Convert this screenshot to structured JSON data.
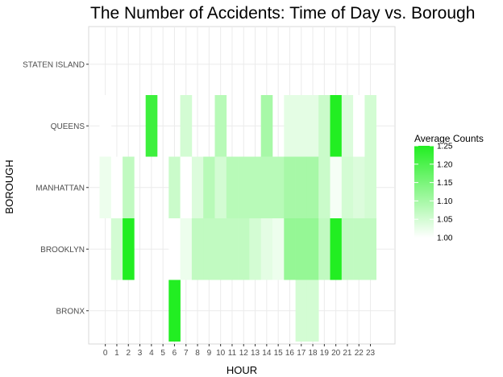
{
  "chart_data": {
    "type": "heatmap",
    "title": "The Number of Accidents: Time of Day vs. Borough",
    "xlabel": "HOUR",
    "ylabel": "BOROUGH",
    "x_categories": [
      "0",
      "1",
      "2",
      "3",
      "4",
      "5",
      "6",
      "7",
      "8",
      "9",
      "10",
      "11",
      "12",
      "13",
      "14",
      "15",
      "16",
      "17",
      "18",
      "19",
      "20",
      "21",
      "22",
      "23"
    ],
    "y_categories": [
      "BRONX",
      "BROOKLYN",
      "MANHATTAN",
      "QUEENS",
      "STATEN ISLAND"
    ],
    "legend": {
      "title": "Average Counts",
      "ticks": [
        "1.25",
        "1.20",
        "1.15",
        "1.10",
        "1.05",
        "1.00"
      ],
      "min": 1.0,
      "max": 1.25,
      "low_color": "#ffffff",
      "high_color": "#22ee22",
      "position": "right"
    },
    "grid": true,
    "cells": {
      "BRONX": {
        "6": 1.25,
        "17": 1.05,
        "18": 1.05
      },
      "BROOKLYN": {
        "1": 1.05,
        "2": 1.25,
        "6": 1.0,
        "7": 1.02,
        "8": 1.07,
        "9": 1.07,
        "10": 1.07,
        "11": 1.07,
        "12": 1.07,
        "13": 1.05,
        "14": 1.03,
        "15": 1.02,
        "16": 1.12,
        "17": 1.12,
        "18": 1.12,
        "19": 1.07,
        "20": 1.25,
        "21": 1.07,
        "22": 1.07,
        "23": 1.07
      },
      "MANHATTAN": {
        "0": 1.02,
        "1": 1.0,
        "2": 1.07,
        "6": 1.06,
        "7": 1.0,
        "8": 1.04,
        "9": 1.08,
        "10": 1.05,
        "11": 1.08,
        "12": 1.08,
        "13": 1.08,
        "14": 1.08,
        "15": 1.08,
        "16": 1.1,
        "17": 1.1,
        "18": 1.1,
        "19": 1.06,
        "20": 1.01,
        "21": 1.05,
        "22": 1.04,
        "23": 1.05
      },
      "QUEENS": {
        "0": 1.0,
        "4": 1.22,
        "7": 1.05,
        "10": 1.08,
        "14": 1.1,
        "16": 1.03,
        "17": 1.03,
        "18": 1.03,
        "19": 1.06,
        "20": 1.25,
        "21": 1.04,
        "22": 1.0,
        "23": 1.05
      }
    }
  }
}
